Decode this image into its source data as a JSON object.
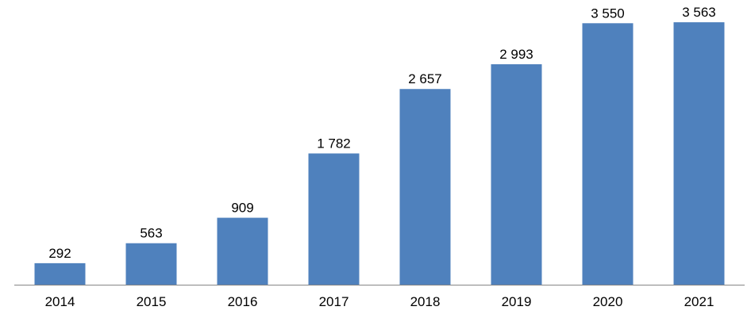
{
  "chart_data": {
    "type": "bar",
    "title": "",
    "xlabel": "",
    "ylabel": "",
    "categories": [
      "2014",
      "2015",
      "2016",
      "2017",
      "2018",
      "2019",
      "2020",
      "2021"
    ],
    "values": [
      292,
      563,
      909,
      1782,
      2657,
      2993,
      3550,
      3563
    ],
    "value_labels": [
      "292",
      "563",
      "909",
      "1 782",
      "2 657",
      "2 993",
      "3 550",
      "3 563"
    ],
    "ylim": [
      0,
      3650
    ],
    "grid": false,
    "legend": "none",
    "bar_color": "#4F81BD",
    "axis_color": "#868686"
  }
}
